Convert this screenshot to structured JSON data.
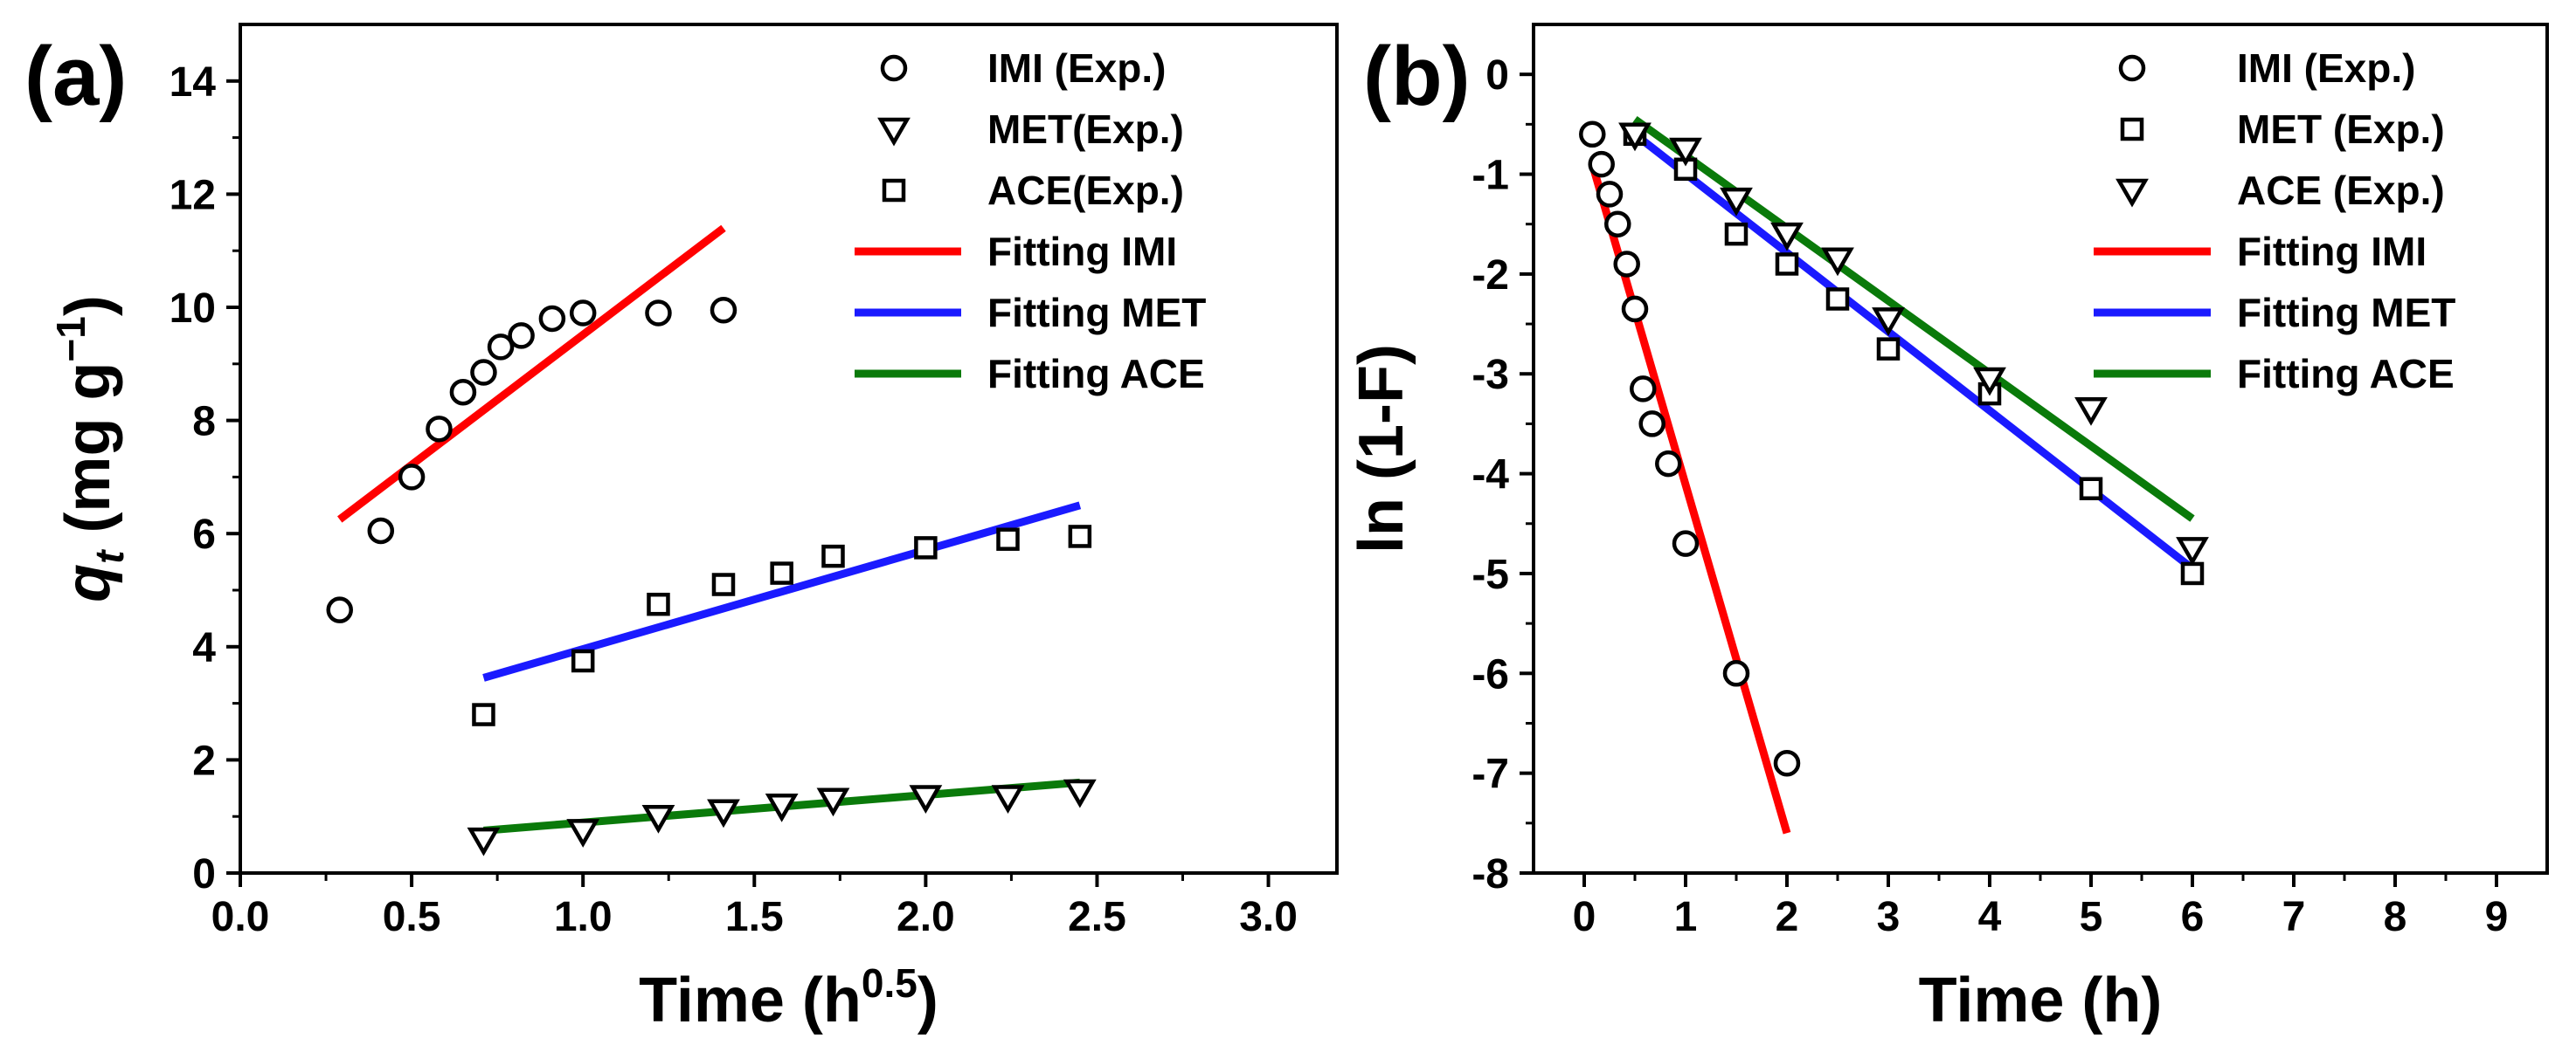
{
  "chart_data": [
    {
      "panel": "(a)",
      "type": "scatter",
      "xlabel_main": "Time (h",
      "xlabel_sup": "0.5",
      "xlabel_end": ")",
      "ylabel_var": "q",
      "ylabel_sub": "t",
      "ylabel_rest": " (mg g",
      "ylabel_sup": "−1",
      "ylabel_end": ")",
      "xlim": [
        0.0,
        3.2
      ],
      "ylim": [
        0,
        15
      ],
      "xticks": [
        "0.0",
        "0.5",
        "1.0",
        "1.5",
        "2.0",
        "2.5",
        "3.0"
      ],
      "yticks": [
        "0",
        "2",
        "4",
        "6",
        "8",
        "10",
        "12",
        "14"
      ],
      "legend_position": "top-right",
      "series": [
        {
          "name": "IMI (Exp.)",
          "marker": "circle",
          "x": [
            0.29,
            0.41,
            0.5,
            0.58,
            0.65,
            0.71,
            0.76,
            0.82,
            0.91,
            1.0,
            1.22,
            1.41
          ],
          "y": [
            4.65,
            6.05,
            7.0,
            7.85,
            8.5,
            8.85,
            9.3,
            9.5,
            9.8,
            9.9,
            9.9,
            9.95
          ]
        },
        {
          "name": "MET(Exp.)",
          "marker": "triangle-down",
          "x": [
            0.71,
            1.0,
            1.22,
            1.41,
            1.58,
            1.73,
            2.0,
            2.24,
            2.45
          ],
          "y": [
            0.6,
            0.75,
            1.0,
            1.1,
            1.2,
            1.3,
            1.35,
            1.35,
            1.45
          ]
        },
        {
          "name": "ACE(Exp.)",
          "marker": "square",
          "x": [
            0.71,
            1.0,
            1.22,
            1.41,
            1.58,
            1.73,
            2.0,
            2.24,
            2.45
          ],
          "y": [
            2.8,
            3.75,
            4.75,
            5.1,
            5.3,
            5.6,
            5.75,
            5.9,
            5.95
          ]
        },
        {
          "name": "Fitting IMI",
          "line": true,
          "color": "#ff0000",
          "x": [
            0.29,
            1.41
          ],
          "y": [
            6.25,
            11.4
          ]
        },
        {
          "name": "Fitting MET",
          "line": true,
          "color": "#1a1aff",
          "x": [
            0.71,
            2.45
          ],
          "y": [
            3.45,
            6.5
          ]
        },
        {
          "name": "Fitting ACE",
          "line": true,
          "color": "#0a7a0a",
          "x": [
            0.71,
            2.45
          ],
          "y": [
            0.75,
            1.6
          ]
        }
      ]
    },
    {
      "panel": "(b)",
      "type": "scatter",
      "xlabel": "Time (h)",
      "ylabel": "ln (1-F)",
      "xlim": [
        -0.5,
        9.5
      ],
      "ylim": [
        -8,
        0.5
      ],
      "xticks": [
        "0",
        "1",
        "2",
        "3",
        "4",
        "5",
        "6",
        "7",
        "8",
        "9"
      ],
      "yticks": [
        "0",
        "-1",
        "-2",
        "-3",
        "-4",
        "-5",
        "-6",
        "-7",
        "-8"
      ],
      "legend_position": "top-right",
      "series": [
        {
          "name": "IMI (Exp.)",
          "marker": "circle",
          "x": [
            0.08,
            0.17,
            0.25,
            0.33,
            0.42,
            0.5,
            0.58,
            0.67,
            0.83,
            1.0,
            1.5,
            2.0
          ],
          "y": [
            -0.6,
            -0.9,
            -1.2,
            -1.5,
            -1.9,
            -2.35,
            -3.15,
            -3.5,
            -3.9,
            -4.7,
            -6.0,
            -6.9
          ]
        },
        {
          "name": "MET (Exp.)",
          "marker": "square",
          "x": [
            0.5,
            1.0,
            1.5,
            2.0,
            2.5,
            3.0,
            4.0,
            5.0,
            6.0
          ],
          "y": [
            -0.6,
            -0.95,
            -1.6,
            -1.9,
            -2.25,
            -2.75,
            -3.2,
            -4.15,
            -5.0
          ]
        },
        {
          "name": "ACE (Exp.)",
          "marker": "triangle-down",
          "x": [
            0.5,
            1.0,
            1.5,
            2.0,
            2.5,
            3.0,
            4.0,
            5.0,
            6.0
          ],
          "y": [
            -0.6,
            -0.75,
            -1.25,
            -1.6,
            -1.85,
            -2.45,
            -3.05,
            -3.35,
            -4.75
          ]
        },
        {
          "name": "Fitting IMI",
          "line": true,
          "color": "#ff0000",
          "x": [
            0.08,
            2.0
          ],
          "y": [
            -0.9,
            -7.6
          ]
        },
        {
          "name": "Fitting MET",
          "line": true,
          "color": "#1a1aff",
          "x": [
            0.5,
            6.0
          ],
          "y": [
            -0.6,
            -4.95
          ]
        },
        {
          "name": "Fitting ACE",
          "line": true,
          "color": "#0a7a0a",
          "x": [
            0.5,
            6.0
          ],
          "y": [
            -0.45,
            -4.45
          ]
        }
      ]
    }
  ]
}
